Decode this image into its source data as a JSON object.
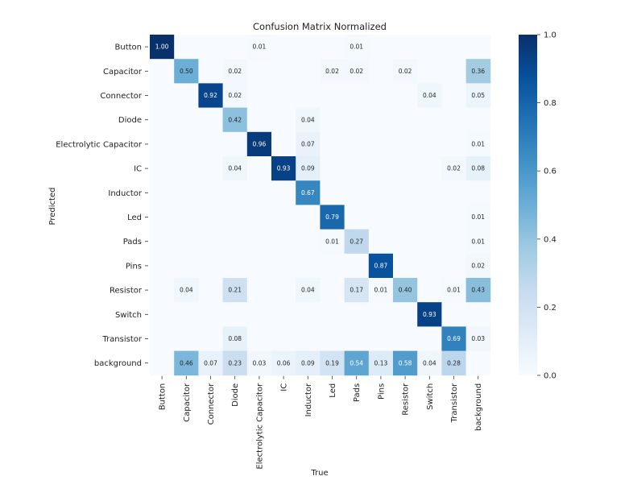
{
  "chart_data": {
    "type": "heatmap",
    "title": "Confusion Matrix Normalized",
    "xlabel": "True",
    "ylabel": "Predicted",
    "labels": [
      "Button",
      "Capacitor",
      "Connector",
      "Diode",
      "Electrolytic Capacitor",
      "IC",
      "Inductor",
      "Led",
      "Pads",
      "Pins",
      "Resistor",
      "Switch",
      "Transistor",
      "background"
    ],
    "values": [
      [
        1.0,
        null,
        null,
        null,
        0.01,
        null,
        null,
        null,
        0.01,
        null,
        null,
        null,
        null,
        null
      ],
      [
        null,
        0.5,
        null,
        0.02,
        null,
        null,
        null,
        0.02,
        0.02,
        null,
        0.02,
        null,
        null,
        0.36
      ],
      [
        null,
        null,
        0.92,
        0.02,
        null,
        null,
        null,
        null,
        null,
        null,
        null,
        0.04,
        null,
        0.05
      ],
      [
        null,
        null,
        null,
        0.42,
        null,
        null,
        0.04,
        null,
        null,
        null,
        null,
        null,
        null,
        null
      ],
      [
        null,
        null,
        null,
        null,
        0.96,
        null,
        0.07,
        null,
        null,
        null,
        null,
        null,
        null,
        0.01
      ],
      [
        null,
        null,
        null,
        0.04,
        null,
        0.93,
        0.09,
        null,
        null,
        null,
        null,
        null,
        0.02,
        0.08
      ],
      [
        null,
        null,
        null,
        null,
        null,
        null,
        0.67,
        null,
        null,
        null,
        null,
        null,
        null,
        null
      ],
      [
        null,
        null,
        null,
        null,
        null,
        null,
        null,
        0.79,
        null,
        null,
        null,
        null,
        null,
        0.01
      ],
      [
        null,
        null,
        null,
        null,
        null,
        null,
        null,
        0.01,
        0.27,
        null,
        null,
        null,
        null,
        0.01
      ],
      [
        null,
        null,
        null,
        null,
        null,
        null,
        null,
        null,
        null,
        0.87,
        null,
        null,
        null,
        0.02
      ],
      [
        null,
        0.04,
        null,
        0.21,
        null,
        null,
        0.04,
        null,
        0.17,
        0.01,
        0.4,
        null,
        0.01,
        0.43
      ],
      [
        null,
        null,
        null,
        null,
        null,
        null,
        null,
        null,
        null,
        null,
        null,
        0.93,
        null,
        null
      ],
      [
        null,
        null,
        null,
        0.08,
        null,
        null,
        null,
        null,
        null,
        null,
        null,
        null,
        0.69,
        0.03
      ],
      [
        null,
        0.46,
        0.07,
        0.23,
        0.03,
        0.06,
        0.09,
        0.19,
        0.54,
        0.13,
        0.58,
        0.04,
        0.28,
        null
      ]
    ],
    "colormap": "Blues",
    "vmin": 0.0,
    "vmax": 1.0,
    "colorbar_ticks": [
      0.0,
      0.2,
      0.4,
      0.6,
      0.8,
      1.0
    ],
    "colorbar_tick_labels": [
      "0.0",
      "0.2",
      "0.4",
      "0.6",
      "0.8",
      "1.0"
    ]
  }
}
